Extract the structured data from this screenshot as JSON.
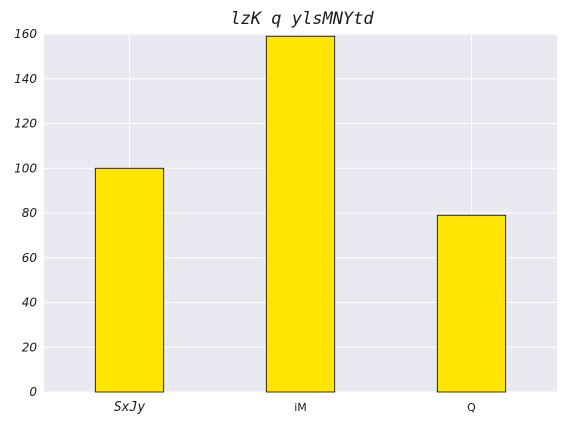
{
  "chart_data": {
    "type": "bar",
    "title": "lzK q ylsMNYtd",
    "categories": [
      "SxJy",
      "iM",
      "Q"
    ],
    "values": [
      100,
      159,
      79
    ],
    "xlabel": "",
    "ylabel": "",
    "ylim": [
      0,
      160
    ],
    "yticks": [
      0,
      20,
      40,
      60,
      80,
      100,
      120,
      140,
      160
    ],
    "grid": true,
    "legend": "none",
    "colors": {
      "bar_fill": "#ffe500",
      "bar_edge": "#000000",
      "plot_background": "#e9e9f1",
      "grid": "#ffffff"
    }
  }
}
